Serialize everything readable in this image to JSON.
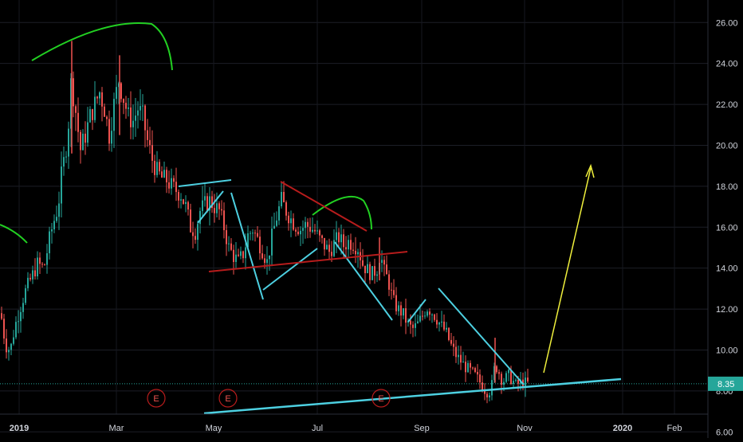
{
  "chart_data": {
    "type": "candlestick",
    "title": "",
    "xlabel": "",
    "ylabel": "",
    "ylim": [
      5.7,
      27.1
    ],
    "y_ticks": [
      "26.00",
      "24.00",
      "22.00",
      "20.00",
      "18.00",
      "16.00",
      "14.00",
      "12.00",
      "10.00",
      "8.00",
      "6.00"
    ],
    "x_ticks": [
      {
        "label": "2019",
        "bold": true
      },
      {
        "label": "Mar",
        "bold": false
      },
      {
        "label": "May",
        "bold": false
      },
      {
        "label": "Jul",
        "bold": false
      },
      {
        "label": "Sep",
        "bold": false
      },
      {
        "label": "Nov",
        "bold": false
      },
      {
        "label": "2020",
        "bold": true
      },
      {
        "label": "Feb",
        "bold": false
      }
    ],
    "last_price": "8.35",
    "grid": true,
    "earnings_markers": [
      "E",
      "E",
      "E"
    ],
    "price_path": [
      [
        0,
        11.8
      ],
      [
        6,
        10.2
      ],
      [
        12,
        10.0
      ],
      [
        18,
        11.2
      ],
      [
        24,
        12.0
      ],
      [
        30,
        12.8
      ],
      [
        38,
        13.5
      ],
      [
        46,
        14.2
      ],
      [
        54,
        14.0
      ],
      [
        62,
        15.6
      ],
      [
        68,
        16.5
      ],
      [
        72,
        17.0
      ],
      [
        76,
        18.5
      ],
      [
        80,
        19.4
      ],
      [
        84,
        20.5
      ],
      [
        88,
        23.0
      ],
      [
        92,
        22.3
      ],
      [
        96,
        21.0
      ],
      [
        100,
        19.8
      ],
      [
        106,
        20.5
      ],
      [
        112,
        21.4
      ],
      [
        118,
        22.0
      ],
      [
        124,
        22.6
      ],
      [
        130,
        21.8
      ],
      [
        136,
        20.5
      ],
      [
        142,
        22.0
      ],
      [
        148,
        23.2
      ],
      [
        152,
        22.6
      ],
      [
        156,
        22.0
      ],
      [
        160,
        21.4
      ],
      [
        166,
        21.2
      ],
      [
        172,
        21.8
      ],
      [
        178,
        21.4
      ],
      [
        184,
        20.2
      ],
      [
        190,
        19.3
      ],
      [
        196,
        18.7
      ],
      [
        202,
        18.4
      ],
      [
        208,
        18.3
      ],
      [
        214,
        18.0
      ],
      [
        220,
        17.8
      ],
      [
        226,
        17.6
      ],
      [
        232,
        17.0
      ],
      [
        238,
        16.0
      ],
      [
        244,
        15.8
      ],
      [
        250,
        16.8
      ],
      [
        256,
        17.1
      ],
      [
        262,
        17.3
      ],
      [
        268,
        17.0
      ],
      [
        274,
        16.8
      ],
      [
        280,
        16.0
      ],
      [
        286,
        15.0
      ],
      [
        292,
        14.6
      ],
      [
        298,
        14.3
      ],
      [
        304,
        14.7
      ],
      [
        310,
        15.6
      ],
      [
        316,
        15.9
      ],
      [
        322,
        15.4
      ],
      [
        328,
        14.9
      ],
      [
        334,
        14.3
      ],
      [
        340,
        15.5
      ],
      [
        346,
        16.5
      ],
      [
        352,
        17.3
      ],
      [
        358,
        16.8
      ],
      [
        364,
        16.4
      ],
      [
        370,
        16.1
      ],
      [
        376,
        15.9
      ],
      [
        382,
        16.1
      ],
      [
        388,
        16.0
      ],
      [
        394,
        15.8
      ],
      [
        400,
        15.4
      ],
      [
        406,
        15.1
      ],
      [
        412,
        14.8
      ],
      [
        418,
        15.2
      ],
      [
        424,
        15.5
      ],
      [
        430,
        15.1
      ],
      [
        436,
        15.3
      ],
      [
        442,
        15.2
      ],
      [
        448,
        15.0
      ],
      [
        454,
        14.2
      ],
      [
        460,
        13.9
      ],
      [
        466,
        13.7
      ],
      [
        472,
        14.0
      ],
      [
        476,
        14.8
      ],
      [
        480,
        13.9
      ],
      [
        486,
        13.4
      ],
      [
        492,
        12.4
      ],
      [
        498,
        12.0
      ],
      [
        504,
        11.8
      ],
      [
        510,
        11.3
      ],
      [
        516,
        11.0
      ],
      [
        522,
        11.2
      ],
      [
        528,
        11.6
      ],
      [
        534,
        12.1
      ],
      [
        540,
        11.9
      ],
      [
        546,
        11.6
      ],
      [
        552,
        11.2
      ],
      [
        558,
        10.9
      ],
      [
        564,
        10.3
      ],
      [
        570,
        9.8
      ],
      [
        576,
        9.5
      ],
      [
        582,
        9.2
      ],
      [
        588,
        9.0
      ],
      [
        594,
        8.8
      ],
      [
        600,
        8.5
      ],
      [
        606,
        8.1
      ],
      [
        612,
        7.9
      ],
      [
        616,
        8.3
      ],
      [
        620,
        9.3
      ],
      [
        624,
        9.0
      ],
      [
        628,
        8.6
      ],
      [
        632,
        8.5
      ],
      [
        636,
        8.8
      ],
      [
        640,
        8.6
      ],
      [
        646,
        8.3
      ],
      [
        652,
        8.4
      ],
      [
        658,
        8.4
      ],
      [
        662,
        8.35
      ]
    ]
  }
}
